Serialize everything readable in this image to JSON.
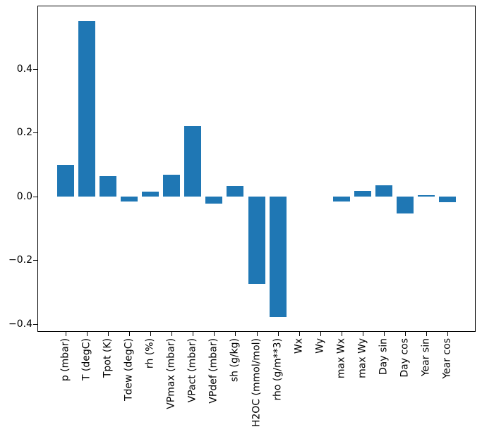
{
  "chart_data": {
    "type": "bar",
    "title": "",
    "xlabel": "",
    "ylabel": "",
    "categories": [
      "p (mbar)",
      "T (degC)",
      "Tpot (K)",
      "Tdew (degC)",
      "rh (%)",
      "VPmax (mbar)",
      "VPact (mbar)",
      "VPdef (mbar)",
      "sh (g/kg)",
      "H2OC (mmol/mol)",
      "rho (g/m**3)",
      "Wx",
      "Wy",
      "max Wx",
      "max Wy",
      "Day sin",
      "Day cos",
      "Year sin",
      "Year cos"
    ],
    "values": [
      0.1,
      0.55,
      0.063,
      -0.016,
      0.015,
      0.069,
      0.222,
      -0.023,
      0.034,
      -0.273,
      -0.378,
      0.0,
      0.0,
      -0.016,
      0.017,
      0.036,
      -0.054,
      0.005,
      -0.017
    ],
    "bar_color": "#1f77b4",
    "axis_color": "#000000",
    "text_color": "#000000",
    "background_color": "#ffffff",
    "ylim": [
      -0.425,
      0.598
    ],
    "yticks": {
      "values": [
        0.4,
        0.2,
        0.0,
        -0.2,
        -0.4
      ],
      "labels": [
        "0.4",
        "0.2",
        "0.0",
        "−0.2",
        "−0.4"
      ]
    },
    "bar_width_fraction": 0.8,
    "grid": false,
    "legend": "none",
    "x_tick_label_rotation_deg": 90
  }
}
